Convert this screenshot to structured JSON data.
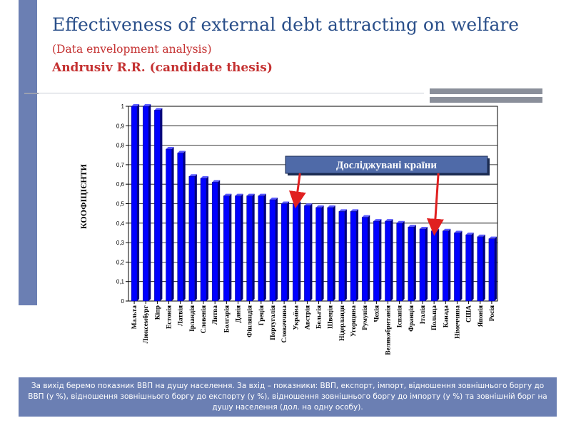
{
  "slide": {
    "title": "Effectiveness of external debt  attracting on welfare",
    "subtitle": "(Data envelopment  analysis)",
    "author": "Andrusiv R.R. (candidate thesis)",
    "footer": "За вихід беремо показник ВВП на душу населення. За вхід – показники: ВВП, експорт, імпорт, відношення зовнішнього боргу до ВВП (у %), відношення зовнішнього боргу до експорту (у %), відношення зовнішнього боргу до імпорту (у %) та зовнішній борг на душу населення (дол. на одну особу)."
  },
  "colors": {
    "title": "#2a4f8a",
    "accent_red": "#c43030",
    "side_bar": "#6b7fb3",
    "bar_fill": "#0000ff",
    "arrow": "#e02020",
    "callout_bg": "#4f6aa8"
  },
  "chart_data": {
    "type": "bar",
    "ylabel": "КООФІЦІЄНТИ",
    "ylim": [
      0,
      1
    ],
    "y_ticks": [
      "0",
      "0,1",
      "0,2",
      "0,3",
      "0,4",
      "0,5",
      "0,6",
      "0,7",
      "0,8",
      "0,9",
      "1"
    ],
    "grid": true,
    "categories": [
      "Мальта",
      "Люксембург",
      "Кіпр",
      "Естонія",
      "Латвія",
      "Ірландія",
      "Словенія",
      "Литва",
      "Болгарія",
      "Данія",
      "Фінляндія",
      "Греція",
      "Португалія",
      "Словаччина",
      "Україна",
      "Австрія",
      "Бельгія",
      "Швеція",
      "Нідерланди",
      "Угорщина",
      "Румунія",
      "Чехія",
      "Великобританія",
      "Іспанія",
      "Франція",
      "Італія",
      "Польща",
      "Канада",
      "Німеччина",
      "США",
      "Японія",
      "Росія"
    ],
    "values": [
      1.0,
      1.0,
      0.98,
      0.78,
      0.76,
      0.64,
      0.63,
      0.61,
      0.54,
      0.54,
      0.54,
      0.54,
      0.52,
      0.5,
      0.5,
      0.49,
      0.48,
      0.48,
      0.46,
      0.46,
      0.43,
      0.41,
      0.41,
      0.4,
      0.38,
      0.37,
      0.36,
      0.36,
      0.35,
      0.34,
      0.33,
      0.32
    ],
    "annotation": {
      "text": "Досліджувані країни",
      "targets": [
        "Україна",
        "Польща"
      ]
    }
  }
}
